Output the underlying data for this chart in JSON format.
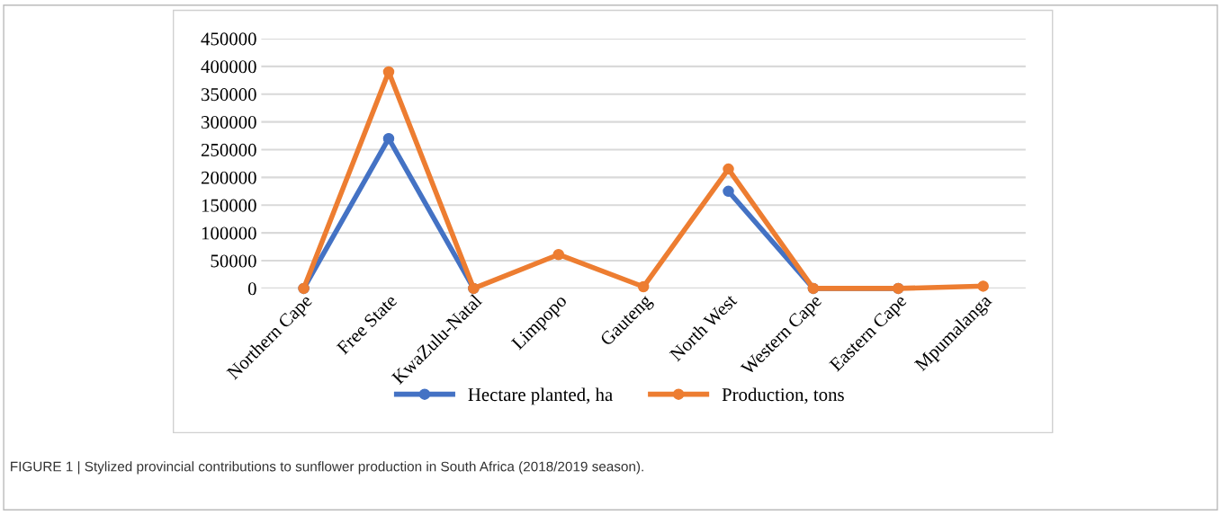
{
  "chart_data": {
    "type": "line",
    "categories": [
      "Northern Cape",
      "Free State",
      "KwaZulu-Natal",
      "Limpopo",
      "Gauteng",
      "North West",
      "Western Cape",
      "Eastern Cape",
      "Mpumalanga"
    ],
    "series": [
      {
        "name": "Hectare planted, ha",
        "color": "#4472c4",
        "values": [
          0,
          270000,
          0,
          null,
          null,
          175000,
          0,
          0,
          null
        ]
      },
      {
        "name": "Production, tons",
        "color": "#ed7d31",
        "values": [
          0,
          390000,
          0,
          61000,
          3000,
          215000,
          0,
          0,
          4000
        ]
      }
    ],
    "ylim": [
      0,
      450000
    ],
    "yticks": [
      0,
      50000,
      100000,
      150000,
      200000,
      250000,
      300000,
      350000,
      400000,
      450000
    ],
    "grid": "y",
    "legend": "bottom",
    "marker": "circle",
    "line_style": "solid",
    "annotations": [
      "FIGURE 1 | Stylized provincial contributions to sunflower production in South Africa (2018/2019 season)."
    ]
  }
}
